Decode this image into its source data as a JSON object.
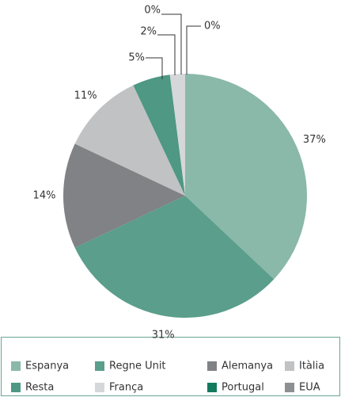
{
  "chart_data": {
    "type": "pie",
    "categories": [
      "Espanya",
      "Regne Unit",
      "Alemanya",
      "Itàlia",
      "Resta",
      "França",
      "Portugal",
      "EUA"
    ],
    "values": [
      37,
      31,
      14,
      11,
      5,
      2,
      0,
      0
    ],
    "value_labels": [
      "37%",
      "31%",
      "14%",
      "11%",
      "5%",
      "2%",
      "0%",
      "0%"
    ],
    "colors": [
      "#8ab8a9",
      "#5a9e8b",
      "#808285",
      "#c1c2c4",
      "#4e9884",
      "#d6d7d8",
      "#137a5d",
      "#8d8f91"
    ],
    "legend": "bottom"
  }
}
